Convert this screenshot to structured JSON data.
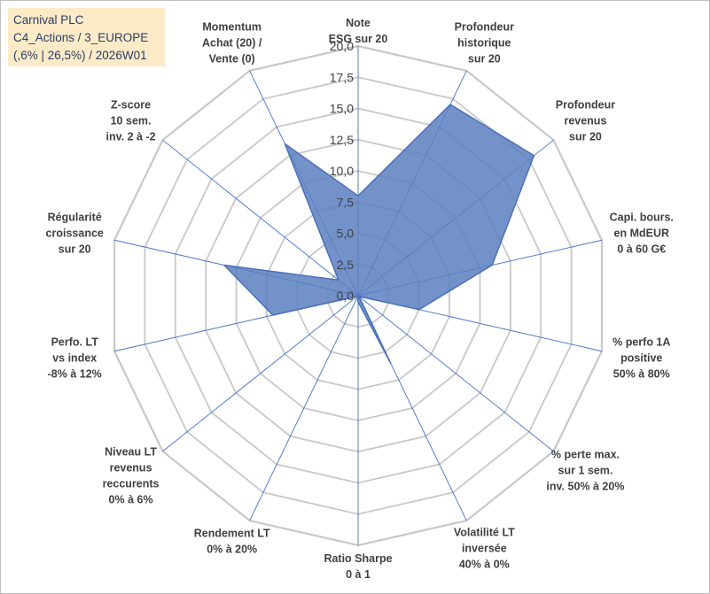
{
  "colors": {
    "grid": "#c8c8c8",
    "spoke": "#4472c4",
    "fill": "#5b7fbf",
    "stroke": "#4a70b8",
    "title_bg": "#fdebc8",
    "title_text": "#2a3d66"
  },
  "title_box": {
    "line1": "Carnival PLC",
    "line2": "C4_Actions / 3_EUROPE",
    "line3": "(,6% | 26,5%) / 2026W01"
  },
  "chart_data": {
    "type": "radar",
    "rmin": 0,
    "rmax": 20,
    "tick_step": 2.5,
    "ticks": [
      "0,0",
      "2,5",
      "5,0",
      "7,5",
      "10,0",
      "12,5",
      "15,0",
      "17,5",
      "20,0"
    ],
    "axes": [
      {
        "label": [
          "Note",
          "ESG sur 20"
        ],
        "value": 8.0
      },
      {
        "label": [
          "Profondeur",
          "historique",
          "sur 20"
        ],
        "value": 17.0
      },
      {
        "label": [
          "Profondeur",
          "revenus",
          "sur 20"
        ],
        "value": 18.0
      },
      {
        "label": [
          "Capi. bours.",
          "en MdEUR",
          "0 à 60 G€"
        ],
        "value": 11.0
      },
      {
        "label": [
          "% perfo 1A",
          "positive",
          "50% à 80%"
        ],
        "value": 5.0
      },
      {
        "label": [
          "% perte max.",
          "sur 1 sem.",
          "inv. 50% à 20%"
        ],
        "value": 0.1
      },
      {
        "label": [
          "Volatilité LT",
          "inversée",
          "40% à 0%"
        ],
        "value": 6.0
      },
      {
        "label": [
          "Ratio Sharpe",
          "0 à 1"
        ],
        "value": 0.5
      },
      {
        "label": [
          "Rendement LT",
          "0% à 20%"
        ],
        "value": 0.1
      },
      {
        "label": [
          "Niveau LT",
          "revenus",
          "reccurents",
          "0% à 6%"
        ],
        "value": 0.1
      },
      {
        "label": [
          "Perfo. LT",
          "vs index",
          "-8% à 12%"
        ],
        "value": 7.0
      },
      {
        "label": [
          "Régularité",
          "croissance",
          "sur 20"
        ],
        "value": 11.0
      },
      {
        "label": [
          "Z-score",
          "10 sem.",
          "inv. 2 à -2"
        ],
        "value": 2.0
      },
      {
        "label": [
          "Momentum",
          "Achat (20) /",
          "Vente (0)"
        ],
        "value": 13.5
      }
    ]
  }
}
